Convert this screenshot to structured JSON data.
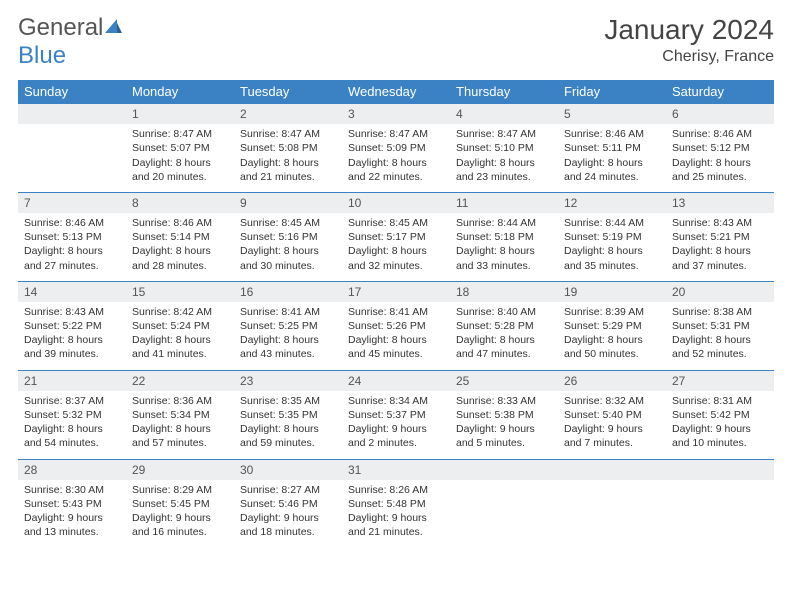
{
  "brand": {
    "part1": "General",
    "part2": "Blue"
  },
  "title": "January 2024",
  "location": "Cherisy, France",
  "colors": {
    "header_bg": "#3b82c4",
    "header_text": "#ffffff",
    "daynum_bg": "#eceeef",
    "border": "#3b82c4",
    "body_text": "#333333"
  },
  "weekdays": [
    "Sunday",
    "Monday",
    "Tuesday",
    "Wednesday",
    "Thursday",
    "Friday",
    "Saturday"
  ],
  "weeks": [
    [
      null,
      {
        "n": "1",
        "sr": "8:47 AM",
        "ss": "5:07 PM",
        "dl": "8 hours and 20 minutes."
      },
      {
        "n": "2",
        "sr": "8:47 AM",
        "ss": "5:08 PM",
        "dl": "8 hours and 21 minutes."
      },
      {
        "n": "3",
        "sr": "8:47 AM",
        "ss": "5:09 PM",
        "dl": "8 hours and 22 minutes."
      },
      {
        "n": "4",
        "sr": "8:47 AM",
        "ss": "5:10 PM",
        "dl": "8 hours and 23 minutes."
      },
      {
        "n": "5",
        "sr": "8:46 AM",
        "ss": "5:11 PM",
        "dl": "8 hours and 24 minutes."
      },
      {
        "n": "6",
        "sr": "8:46 AM",
        "ss": "5:12 PM",
        "dl": "8 hours and 25 minutes."
      }
    ],
    [
      {
        "n": "7",
        "sr": "8:46 AM",
        "ss": "5:13 PM",
        "dl": "8 hours and 27 minutes."
      },
      {
        "n": "8",
        "sr": "8:46 AM",
        "ss": "5:14 PM",
        "dl": "8 hours and 28 minutes."
      },
      {
        "n": "9",
        "sr": "8:45 AM",
        "ss": "5:16 PM",
        "dl": "8 hours and 30 minutes."
      },
      {
        "n": "10",
        "sr": "8:45 AM",
        "ss": "5:17 PM",
        "dl": "8 hours and 32 minutes."
      },
      {
        "n": "11",
        "sr": "8:44 AM",
        "ss": "5:18 PM",
        "dl": "8 hours and 33 minutes."
      },
      {
        "n": "12",
        "sr": "8:44 AM",
        "ss": "5:19 PM",
        "dl": "8 hours and 35 minutes."
      },
      {
        "n": "13",
        "sr": "8:43 AM",
        "ss": "5:21 PM",
        "dl": "8 hours and 37 minutes."
      }
    ],
    [
      {
        "n": "14",
        "sr": "8:43 AM",
        "ss": "5:22 PM",
        "dl": "8 hours and 39 minutes."
      },
      {
        "n": "15",
        "sr": "8:42 AM",
        "ss": "5:24 PM",
        "dl": "8 hours and 41 minutes."
      },
      {
        "n": "16",
        "sr": "8:41 AM",
        "ss": "5:25 PM",
        "dl": "8 hours and 43 minutes."
      },
      {
        "n": "17",
        "sr": "8:41 AM",
        "ss": "5:26 PM",
        "dl": "8 hours and 45 minutes."
      },
      {
        "n": "18",
        "sr": "8:40 AM",
        "ss": "5:28 PM",
        "dl": "8 hours and 47 minutes."
      },
      {
        "n": "19",
        "sr": "8:39 AM",
        "ss": "5:29 PM",
        "dl": "8 hours and 50 minutes."
      },
      {
        "n": "20",
        "sr": "8:38 AM",
        "ss": "5:31 PM",
        "dl": "8 hours and 52 minutes."
      }
    ],
    [
      {
        "n": "21",
        "sr": "8:37 AM",
        "ss": "5:32 PM",
        "dl": "8 hours and 54 minutes."
      },
      {
        "n": "22",
        "sr": "8:36 AM",
        "ss": "5:34 PM",
        "dl": "8 hours and 57 minutes."
      },
      {
        "n": "23",
        "sr": "8:35 AM",
        "ss": "5:35 PM",
        "dl": "8 hours and 59 minutes."
      },
      {
        "n": "24",
        "sr": "8:34 AM",
        "ss": "5:37 PM",
        "dl": "9 hours and 2 minutes."
      },
      {
        "n": "25",
        "sr": "8:33 AM",
        "ss": "5:38 PM",
        "dl": "9 hours and 5 minutes."
      },
      {
        "n": "26",
        "sr": "8:32 AM",
        "ss": "5:40 PM",
        "dl": "9 hours and 7 minutes."
      },
      {
        "n": "27",
        "sr": "8:31 AM",
        "ss": "5:42 PM",
        "dl": "9 hours and 10 minutes."
      }
    ],
    [
      {
        "n": "28",
        "sr": "8:30 AM",
        "ss": "5:43 PM",
        "dl": "9 hours and 13 minutes."
      },
      {
        "n": "29",
        "sr": "8:29 AM",
        "ss": "5:45 PM",
        "dl": "9 hours and 16 minutes."
      },
      {
        "n": "30",
        "sr": "8:27 AM",
        "ss": "5:46 PM",
        "dl": "9 hours and 18 minutes."
      },
      {
        "n": "31",
        "sr": "8:26 AM",
        "ss": "5:48 PM",
        "dl": "9 hours and 21 minutes."
      },
      null,
      null,
      null
    ]
  ],
  "labels": {
    "sunrise": "Sunrise:",
    "sunset": "Sunset:",
    "daylight": "Daylight:"
  }
}
